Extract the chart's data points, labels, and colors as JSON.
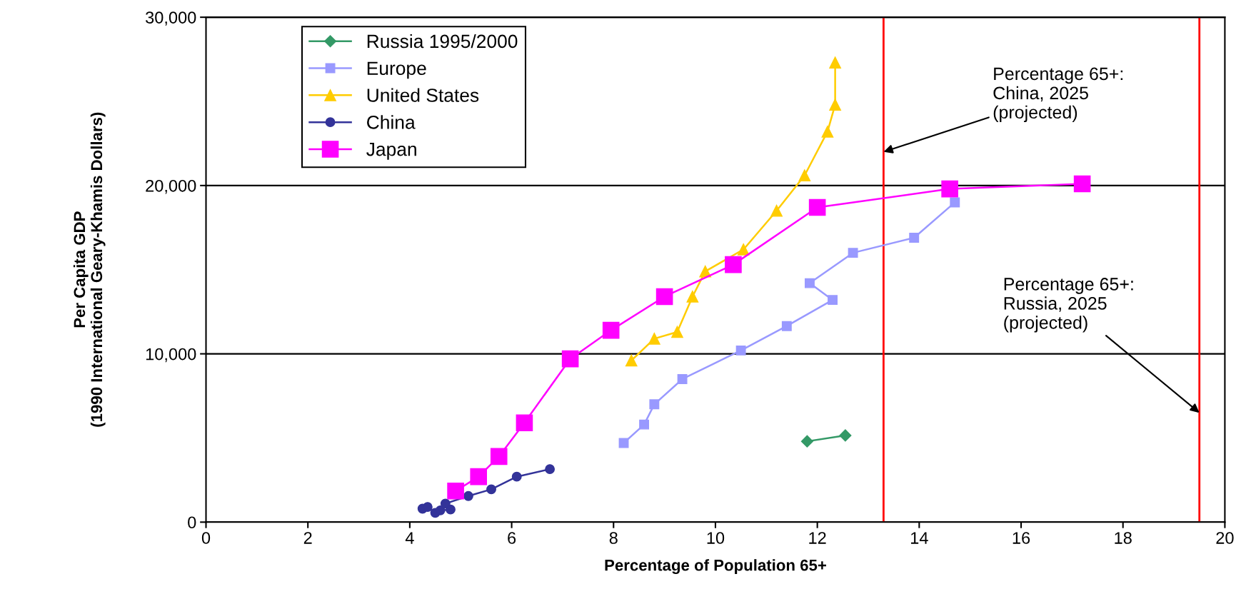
{
  "chart_data": {
    "type": "line",
    "xlabel": "Percentage of Population 65+",
    "ylabel": "Per Capita GDP\n(1990 International Geary-Khamis Dollars)",
    "xlim": [
      0,
      20
    ],
    "xticks": [
      0,
      2,
      4,
      6,
      8,
      10,
      12,
      14,
      16,
      18,
      20
    ],
    "ylim": [
      0,
      30000
    ],
    "yticks": [
      0,
      {
        "value": 10000,
        "label": "10,000"
      },
      {
        "value": 20000,
        "label": "20,000"
      },
      {
        "value": 30000,
        "label": "30,000"
      }
    ],
    "grid": "y",
    "legend": "top left",
    "series": [
      {
        "name": "Russia 1995/2000",
        "color": "#339966",
        "marker": "diamond",
        "x": [
          11.8,
          12.55
        ],
        "values": [
          4800,
          5150
        ]
      },
      {
        "name": "Europe",
        "color": "#9999ff",
        "marker": "square",
        "x": [
          8.2,
          8.6,
          8.8,
          9.35,
          10.5,
          11.4,
          12.3,
          11.85,
          12.7,
          13.9,
          14.7
        ],
        "values": [
          4700,
          5800,
          7000,
          8500,
          10200,
          11650,
          13200,
          14200,
          16000,
          16900,
          19000
        ]
      },
      {
        "name": "United States",
        "color": "#ffcc00",
        "marker": "triangle",
        "x": [
          8.35,
          8.8,
          9.25,
          9.55,
          9.8,
          10.55,
          11.2,
          11.75,
          12.2,
          12.35,
          12.35
        ],
        "values": [
          9600,
          10900,
          11300,
          13400,
          14900,
          16200,
          18500,
          20600,
          23200,
          24800,
          27300
        ]
      },
      {
        "name": "China",
        "color": "#333399",
        "marker": "circle",
        "x": [
          4.25,
          4.35,
          4.5,
          4.6,
          4.8,
          4.7,
          5.15,
          5.6,
          6.1,
          6.75
        ],
        "values": [
          800,
          900,
          550,
          700,
          750,
          1100,
          1550,
          1950,
          2700,
          3150
        ]
      },
      {
        "name": "Japan",
        "color": "#ff00ff",
        "marker": "square",
        "x": [
          4.9,
          5.35,
          5.75,
          6.25,
          7.15,
          7.95,
          9.0,
          10.35,
          12.0,
          14.6,
          17.2
        ],
        "values": [
          1850,
          2700,
          3900,
          5900,
          9700,
          11400,
          13400,
          15300,
          18700,
          19800,
          20100
        ]
      }
    ],
    "ref_lines": [
      {
        "axis": "x",
        "value": 13.3,
        "color": "#ff0000"
      },
      {
        "axis": "x",
        "value": 19.5,
        "color": "#ff0000"
      }
    ],
    "annotations": [
      {
        "text": "Percentage 65+:\nChina, 2025\n(projected)",
        "x": 13.3,
        "y": 22000
      },
      {
        "text": "Percentage 65+:\nRussia, 2025\n(projected)",
        "x": 19.5,
        "y": 6500
      }
    ]
  }
}
